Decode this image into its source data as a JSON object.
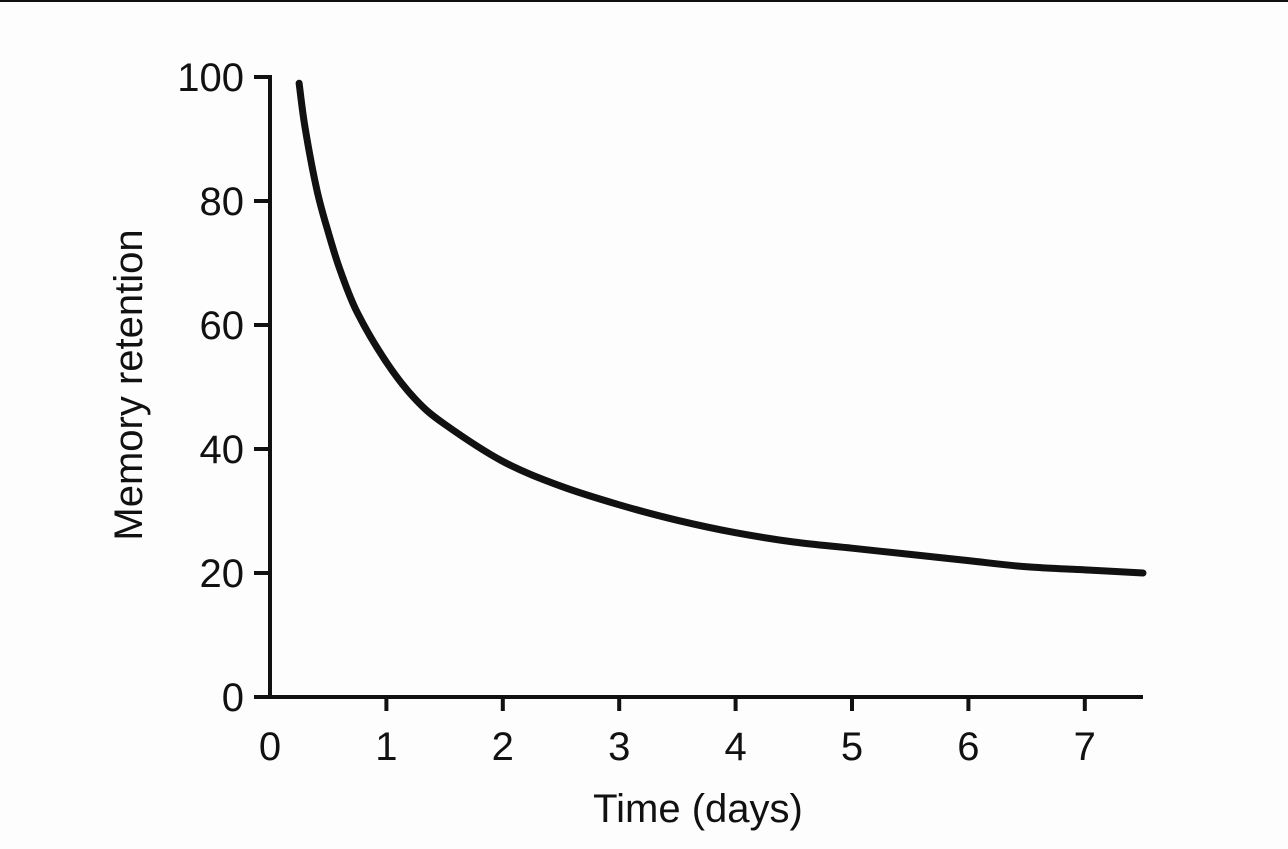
{
  "chart_data": {
    "type": "line",
    "xlabel": "Time (days)",
    "ylabel": "Memory retention",
    "xlim": [
      0,
      7.5
    ],
    "ylim": [
      0,
      100
    ],
    "x_ticks": [
      0,
      1,
      2,
      3,
      4,
      5,
      6,
      7
    ],
    "y_ticks": [
      0,
      20,
      40,
      60,
      80,
      100
    ],
    "grid": false,
    "legend": "none",
    "line_color": "#111111",
    "series": [
      {
        "x": [
          0.25,
          0.3,
          0.4,
          0.5,
          0.6,
          0.75,
          1.0,
          1.25,
          1.5,
          2.0,
          2.5,
          3.0,
          3.5,
          4.0,
          4.5,
          5.0,
          5.5,
          6.0,
          6.5,
          7.0,
          7.5
        ],
        "y": [
          99,
          92,
          82,
          75,
          69,
          62,
          54,
          48,
          44,
          38,
          34,
          31,
          28.5,
          26.5,
          25,
          24,
          23,
          22,
          21,
          20.5,
          20
        ]
      }
    ]
  }
}
